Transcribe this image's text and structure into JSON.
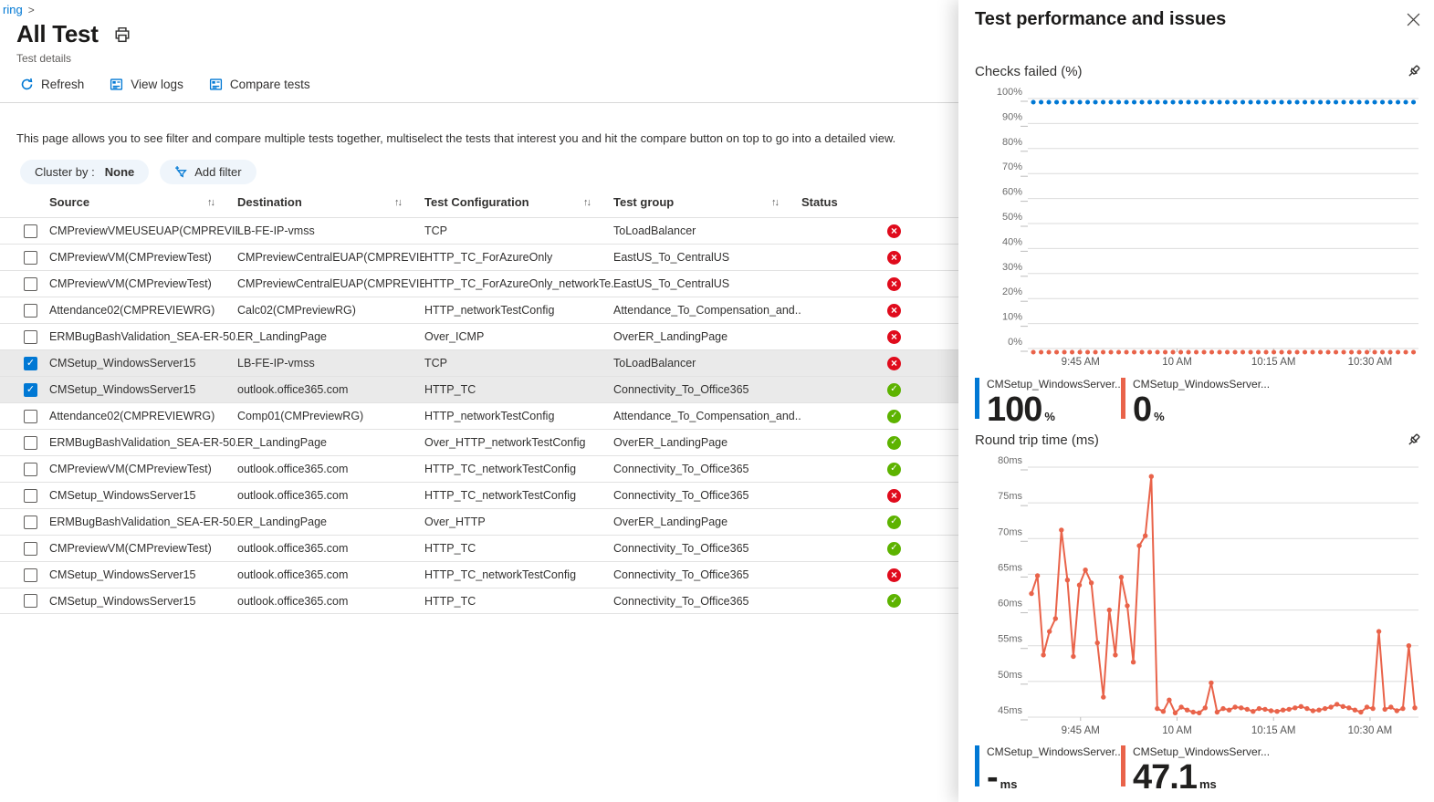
{
  "breadcrumb": {
    "trail": "ring",
    "chevron": ">"
  },
  "header": {
    "title": "All Test",
    "subtitle": "Test details"
  },
  "toolbar": {
    "refresh": "Refresh",
    "view_logs": "View logs",
    "compare_tests": "Compare tests"
  },
  "description": "This page allows you to see filter and compare multiple tests together, multiselect the tests that interest you and hit the compare button on top to go into a detailed view.",
  "filters": {
    "cluster_by_label": "Cluster by :",
    "cluster_by_value": "None",
    "add_filter": "Add filter"
  },
  "table": {
    "columns": [
      "Source",
      "Destination",
      "Test Configuration",
      "Test group",
      "Status"
    ],
    "rows": [
      {
        "checked": false,
        "source": "CMPreviewVMEUSEUAP(CMPREVIE...",
        "destination": "LB-FE-IP-vmss",
        "config": "TCP",
        "group": "ToLoadBalancer",
        "status": "fail"
      },
      {
        "checked": false,
        "source": "CMPreviewVM(CMPreviewTest)",
        "destination": "CMPreviewCentralEUAP(CMPREVIE...",
        "config": "HTTP_TC_ForAzureOnly",
        "group": "EastUS_To_CentralUS",
        "status": "fail"
      },
      {
        "checked": false,
        "source": "CMPreviewVM(CMPreviewTest)",
        "destination": "CMPreviewCentralEUAP(CMPREVIE...",
        "config": "HTTP_TC_ForAzureOnly_networkTe...",
        "group": "EastUS_To_CentralUS",
        "status": "fail"
      },
      {
        "checked": false,
        "source": "Attendance02(CMPREVIEWRG)",
        "destination": "Calc02(CMPreviewRG)",
        "config": "HTTP_networkTestConfig",
        "group": "Attendance_To_Compensation_and...",
        "status": "fail"
      },
      {
        "checked": false,
        "source": "ERMBugBashValidation_SEA-ER-50...",
        "destination": "ER_LandingPage",
        "config": "Over_ICMP",
        "group": "OverER_LandingPage",
        "status": "fail"
      },
      {
        "checked": true,
        "source": "CMSetup_WindowsServer15",
        "destination": "LB-FE-IP-vmss",
        "config": "TCP",
        "group": "ToLoadBalancer",
        "status": "fail"
      },
      {
        "checked": true,
        "source": "CMSetup_WindowsServer15",
        "destination": "outlook.office365.com",
        "config": "HTTP_TC",
        "group": "Connectivity_To_Office365",
        "status": "pass"
      },
      {
        "checked": false,
        "source": "Attendance02(CMPREVIEWRG)",
        "destination": "Comp01(CMPreviewRG)",
        "config": "HTTP_networkTestConfig",
        "group": "Attendance_To_Compensation_and...",
        "status": "pass"
      },
      {
        "checked": false,
        "source": "ERMBugBashValidation_SEA-ER-50...",
        "destination": "ER_LandingPage",
        "config": "Over_HTTP_networkTestConfig",
        "group": "OverER_LandingPage",
        "status": "pass"
      },
      {
        "checked": false,
        "source": "CMPreviewVM(CMPreviewTest)",
        "destination": "outlook.office365.com",
        "config": "HTTP_TC_networkTestConfig",
        "group": "Connectivity_To_Office365",
        "status": "pass"
      },
      {
        "checked": false,
        "source": "CMSetup_WindowsServer15",
        "destination": "outlook.office365.com",
        "config": "HTTP_TC_networkTestConfig",
        "group": "Connectivity_To_Office365",
        "status": "fail"
      },
      {
        "checked": false,
        "source": "ERMBugBashValidation_SEA-ER-50...",
        "destination": "ER_LandingPage",
        "config": "Over_HTTP",
        "group": "OverER_LandingPage",
        "status": "pass"
      },
      {
        "checked": false,
        "source": "CMPreviewVM(CMPreviewTest)",
        "destination": "outlook.office365.com",
        "config": "HTTP_TC",
        "group": "Connectivity_To_Office365",
        "status": "pass"
      },
      {
        "checked": false,
        "source": "CMSetup_WindowsServer15",
        "destination": "outlook.office365.com",
        "config": "HTTP_TC_networkTestConfig",
        "group": "Connectivity_To_Office365",
        "status": "fail"
      },
      {
        "checked": false,
        "source": "CMSetup_WindowsServer15",
        "destination": "outlook.office365.com",
        "config": "HTTP_TC",
        "group": "Connectivity_To_Office365",
        "status": "pass"
      }
    ]
  },
  "panel": {
    "title": "Test performance and issues"
  },
  "chart_data": [
    {
      "type": "line",
      "title": "Checks failed (%)",
      "ysuffix": "%",
      "yticks": [
        100,
        90,
        80,
        70,
        60,
        50,
        40,
        30,
        20,
        10,
        0
      ],
      "xticks": [
        "9:45 AM",
        "10 AM",
        "10:15 AM",
        "10:30 AM"
      ],
      "grid": true,
      "legend_position": "bottom",
      "series": [
        {
          "name": "CMSetup_WindowsServer...",
          "color": "#0078d4",
          "style": "dotted",
          "constant": 100,
          "legend_value": "100",
          "legend_unit": "%"
        },
        {
          "name": "CMSetup_WindowsServer...",
          "color": "#e9634a",
          "style": "dotted",
          "constant": 0,
          "legend_value": "0",
          "legend_unit": "%"
        }
      ]
    },
    {
      "type": "line",
      "title": "Round trip time (ms)",
      "ysuffix": "ms",
      "yticks": [
        80,
        75,
        70,
        65,
        60,
        55,
        50,
        45
      ],
      "xticks": [
        "9:45 AM",
        "10 AM",
        "10:15 AM",
        "10:30 AM"
      ],
      "grid": true,
      "legend_position": "bottom",
      "series": [
        {
          "name": "CMSetup_WindowsServer...",
          "color": "#0078d4",
          "legend_value": "-",
          "legend_unit": "ms",
          "values": []
        },
        {
          "name": "CMSetup_WindowsServer...",
          "color": "#e9634a",
          "legend_value": "47.1",
          "legend_unit": "ms",
          "values": [
            62.3,
            64.8,
            53.7,
            57,
            58.8,
            71.2,
            64.2,
            53.5,
            63.5,
            65.6,
            63.8,
            55.4,
            47.8,
            60,
            53.7,
            64.6,
            60.6,
            52.7,
            69,
            70.4,
            78.7,
            46.2,
            45.8,
            47.4,
            45.6,
            46.4,
            46,
            45.7,
            45.6,
            46.3,
            49.8,
            45.7,
            46.2,
            46,
            46.4,
            46.3,
            46.1,
            45.8,
            46.2,
            46.1,
            45.9,
            45.8,
            46,
            46.1,
            46.3,
            46.5,
            46.2,
            45.9,
            46,
            46.2,
            46.4,
            46.8,
            46.5,
            46.3,
            46,
            45.7,
            46.4,
            46.2,
            57,
            46.1,
            46.4,
            45.9,
            46.2,
            55,
            46.3
          ]
        }
      ]
    }
  ],
  "colors": {
    "accent_blue": "#0078d4",
    "chart_red": "#e9634a",
    "status_fail": "#e00b1c",
    "status_pass": "#5db300"
  }
}
